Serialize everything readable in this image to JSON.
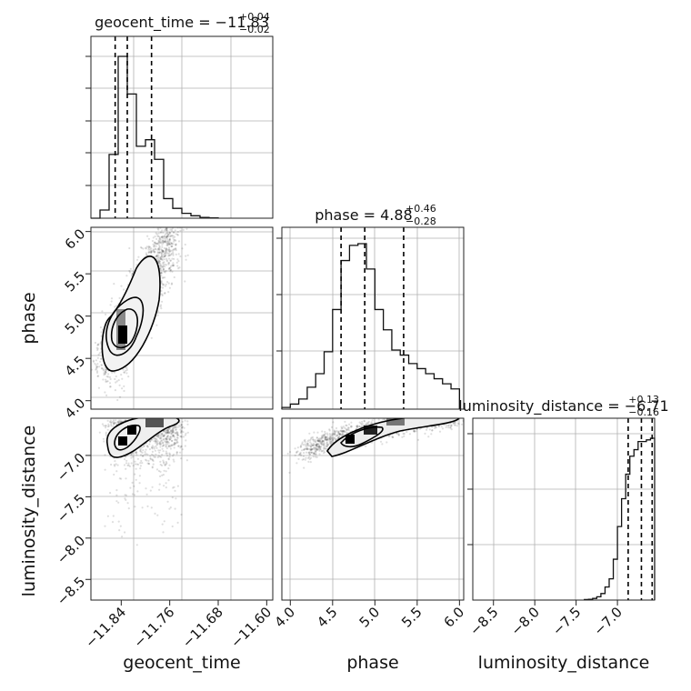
{
  "chart_data": [
    {
      "type": "histogram",
      "panel": "geocent_time-1d",
      "title": {
        "main": "geocent_time = −11.83",
        "sup": "+0.04",
        "sub": "−0.02"
      },
      "xlim": [
        -11.89,
        -11.59
      ],
      "bin_edges": [
        -11.89,
        -11.875,
        -11.86,
        -11.845,
        -11.83,
        -11.815,
        -11.8,
        -11.785,
        -11.77,
        -11.755,
        -11.74,
        -11.725,
        -11.71,
        -11.695,
        -11.68
      ],
      "counts": [
        0,
        0.05,
        0.39,
        0.99,
        0.76,
        0.44,
        0.48,
        0.36,
        0.12,
        0.06,
        0.03,
        0.015,
        0.005,
        0.002
      ],
      "quantiles": [
        -11.85,
        -11.83,
        -11.79
      ],
      "xticks": [
        -11.84,
        -11.76,
        -11.68,
        -11.6
      ],
      "xtick_labels": [
        "−11.84",
        "−11.76",
        "−11.68",
        "−11.60"
      ]
    },
    {
      "type": "histogram",
      "panel": "phase-1d",
      "title": {
        "main": "phase = 4.88",
        "sup": "+0.46",
        "sub": "−0.28"
      },
      "xlim": [
        3.9,
        6.05
      ],
      "bin_edges": [
        3.9,
        4.0,
        4.1,
        4.2,
        4.3,
        4.4,
        4.5,
        4.6,
        4.7,
        4.8,
        4.9,
        5.0,
        5.1,
        5.2,
        5.3,
        5.4,
        5.5,
        5.6,
        5.7,
        5.8,
        5.9,
        6.0
      ],
      "counts": [
        0.01,
        0.03,
        0.06,
        0.13,
        0.21,
        0.34,
        0.59,
        0.88,
        0.97,
        0.98,
        0.83,
        0.59,
        0.47,
        0.35,
        0.32,
        0.27,
        0.24,
        0.21,
        0.18,
        0.15,
        0.12
      ],
      "quantiles": [
        4.6,
        4.88,
        5.34
      ],
      "xticks": [
        4.0,
        4.5,
        5.0,
        5.5,
        6.0
      ],
      "xtick_labels": [
        "4.0",
        "4.5",
        "5.0",
        "5.5",
        "6.0"
      ]
    },
    {
      "type": "histogram",
      "panel": "luminosity_distance-1d",
      "title": {
        "main": "luminosity_distance = −6.71",
        "sup": "+0.13",
        "sub": "−0.16"
      },
      "xlim": [
        -8.75,
        -6.55
      ],
      "bin_edges": [
        -7.4,
        -7.35,
        -7.3,
        -7.25,
        -7.2,
        -7.15,
        -7.1,
        -7.05,
        -7.0,
        -6.95,
        -6.9,
        -6.85,
        -6.8,
        -6.75,
        -6.7,
        -6.65,
        -6.6,
        -6.55
      ],
      "counts": [
        0.003,
        0.005,
        0.01,
        0.02,
        0.04,
        0.08,
        0.13,
        0.25,
        0.45,
        0.62,
        0.77,
        0.88,
        0.92,
        0.97,
        0.97,
        0.98,
        0.99
      ],
      "quantiles": [
        -6.87,
        -6.71,
        -6.58
      ],
      "xticks": [
        -8.5,
        -8.0,
        -7.5,
        -7.0
      ],
      "xtick_labels": [
        "−8.5",
        "−8.0",
        "−7.5",
        "−7.0"
      ]
    },
    {
      "type": "scatter",
      "panel": "geocent_time-vs-phase",
      "xlim": [
        -11.89,
        -11.59
      ],
      "ylim": [
        3.9,
        6.05
      ],
      "yticks": [
        4.0,
        4.5,
        5.0,
        5.5,
        6.0
      ],
      "ytick_labels": [
        "4.0",
        "4.5",
        "5.0",
        "5.5",
        "6.0"
      ],
      "ylabel": "phase"
    },
    {
      "type": "scatter",
      "panel": "geocent_time-vs-luminosity_distance",
      "xlim": [
        -11.89,
        -11.59
      ],
      "ylim": [
        -8.75,
        -6.55
      ],
      "yticks": [
        -8.5,
        -8.0,
        -7.5,
        -7.0
      ],
      "ytick_labels": [
        "−8.5",
        "−8.0",
        "−7.5",
        "−7.0"
      ],
      "ylabel": "luminosity_distance",
      "xlabel": "geocent_time"
    },
    {
      "type": "scatter",
      "panel": "phase-vs-luminosity_distance",
      "xlim": [
        3.9,
        6.05
      ],
      "ylim": [
        -8.75,
        -6.55
      ],
      "xlabel": "phase"
    }
  ],
  "labels": {
    "x3": "luminosity_distance"
  }
}
